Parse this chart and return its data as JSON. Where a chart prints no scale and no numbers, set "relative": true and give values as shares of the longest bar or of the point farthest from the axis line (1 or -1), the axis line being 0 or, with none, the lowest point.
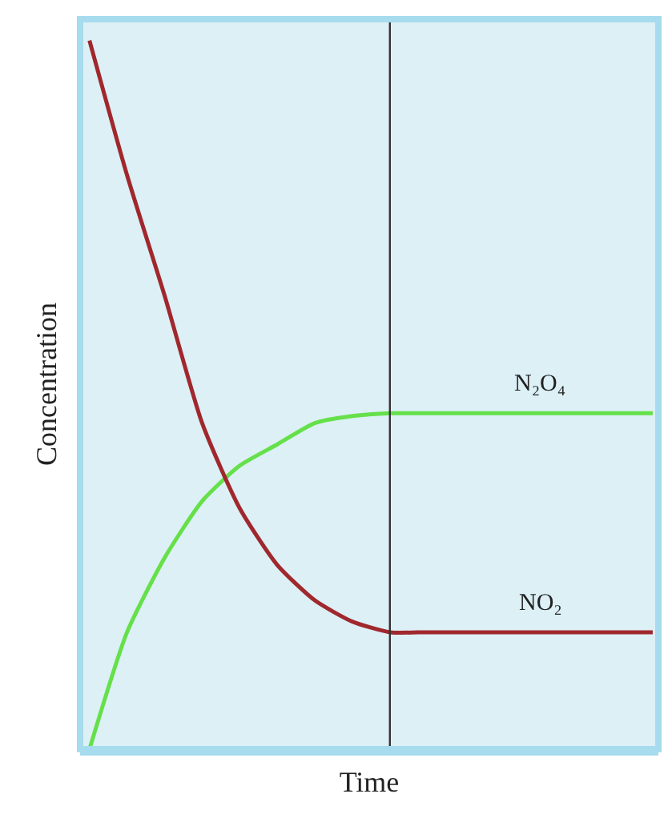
{
  "chart_data": {
    "type": "line",
    "relative": true,
    "xlabel": "Time",
    "ylabel": "Concentration",
    "categories": [
      null,
      null,
      null,
      null,
      null,
      null,
      null,
      null,
      null,
      null,
      null,
      null,
      null,
      null,
      null,
      null
    ],
    "series": [
      {
        "name": "N₂O₄",
        "color": "#66e04a",
        "values": [
          0,
          0.165,
          0.27,
          0.35,
          0.4,
          0.43,
          0.46,
          0.47,
          0.474,
          0.474,
          0.474,
          0.474,
          0.474,
          0.474,
          0.474,
          0.474
        ]
      },
      {
        "name": "NO₂",
        "color": "#a0282d",
        "values": [
          1,
          0.81,
          0.64,
          0.46,
          0.34,
          0.26,
          0.21,
          0.18,
          0.165,
          0.165,
          0.165,
          0.165,
          0.165,
          0.165,
          0.165,
          0.165
        ]
      }
    ],
    "marker": "none",
    "line_style": "solid",
    "grid": false,
    "legend": false,
    "tick_labels": false
  }
}
